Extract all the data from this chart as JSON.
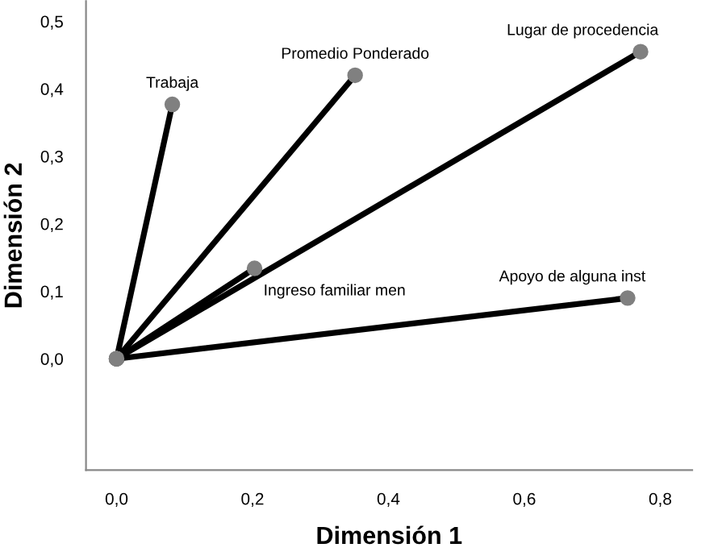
{
  "chart_data": {
    "type": "line",
    "xlabel": "Dimensión 1",
    "ylabel": "Dimensión 2",
    "series": [
      {
        "name": "Trabaja",
        "color": "#000000",
        "x": [
          0,
          0.082
        ],
        "values": [
          0,
          0.377
        ]
      },
      {
        "name": "Promedio Ponderado",
        "color": "#000000",
        "x": [
          0,
          0.351
        ],
        "values": [
          0,
          0.42
        ]
      },
      {
        "name": "Lugar de procedencia",
        "color": "#000000",
        "x": [
          0,
          0.771
        ],
        "values": [
          0,
          0.455
        ]
      },
      {
        "name": "Ingreso familiar men",
        "color": "#000000",
        "x": [
          0,
          0.203
        ],
        "values": [
          0,
          0.134
        ]
      },
      {
        "name": "Apoyo de alguna inst",
        "color": "#000000",
        "x": [
          0,
          0.752
        ],
        "values": [
          0,
          0.09
        ]
      }
    ],
    "xlim": [
      -0.045,
      0.847
    ],
    "ylim": [
      -0.165,
      0.53
    ],
    "xticks": [
      {
        "value": 0,
        "label": "0,0"
      },
      {
        "value": 0.2,
        "label": "0,2"
      },
      {
        "value": 0.4,
        "label": "0,4"
      },
      {
        "value": 0.6,
        "label": "0,6"
      },
      {
        "value": 0.8,
        "label": "0,8"
      }
    ],
    "yticks": [
      {
        "value": 0,
        "label": "0,0"
      },
      {
        "value": 0.1,
        "label": "0,1"
      },
      {
        "value": 0.2,
        "label": "0,2"
      },
      {
        "value": 0.3,
        "label": "0,3"
      },
      {
        "value": 0.4,
        "label": "0,4"
      },
      {
        "value": 0.5,
        "label": "0,5"
      }
    ],
    "marker": "circle",
    "line_style": "solid",
    "grid": false,
    "legend": false
  }
}
